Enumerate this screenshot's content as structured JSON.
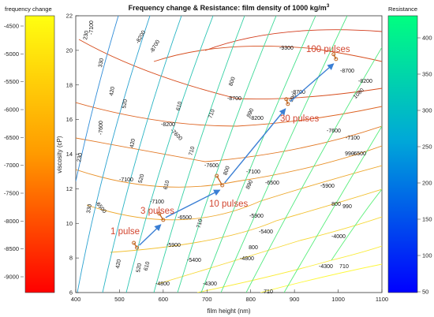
{
  "chart_data": [
    {
      "type": "contour",
      "title": "Frequency change & Resistance: film density of 1000 kg/m",
      "title_superscript": "3",
      "xlabel": "film height (nm)",
      "ylabel": "viscosity (cP)",
      "xlim": [
        400,
        1100
      ],
      "ylim": [
        6,
        22
      ],
      "x_ticks": [
        400,
        500,
        600,
        700,
        800,
        900,
        1000,
        1100
      ],
      "y_ticks": [
        6,
        8,
        10,
        12,
        14,
        16,
        18,
        20,
        22
      ],
      "frequency_contour_labels": [
        "-9300",
        "-8700",
        "-8700",
        "-8700",
        "-8200",
        "-8200",
        "-8200",
        "-7600",
        "-7600",
        "-7600",
        "-7600",
        "-7100",
        "-7100",
        "-7100",
        "-7100",
        "-6500",
        "-6500",
        "-6500",
        "-6500",
        "-5900",
        "-5900",
        "-5900",
        "-5400",
        "-5400",
        "-4800",
        "-4800",
        "-4300",
        "-4300",
        "-4000",
        "-7100",
        "-8200",
        "-8700"
      ],
      "resistance_contour_labels": [
        "230",
        "230",
        "330",
        "330",
        "420",
        "420",
        "420",
        "520",
        "520",
        "520",
        "610",
        "610",
        "610",
        "710",
        "710",
        "710",
        "710",
        "800",
        "800",
        "800",
        "890",
        "890",
        "990",
        "990",
        "1080",
        "990",
        "800",
        "710"
      ],
      "series": [
        {
          "name": "pulses",
          "points": [
            {
              "x": 540,
              "y": 8.6
            },
            {
              "x": 600,
              "y": 10.2
            },
            {
              "x": 735,
              "y": 12.2
            },
            {
              "x": 885,
              "y": 16.9
            },
            {
              "x": 995,
              "y": 19.5
            }
          ]
        }
      ],
      "annotations": [
        "1 pulse",
        "3 pulses",
        "10 pulses",
        "30 pulses",
        "100 pulses"
      ],
      "colorbars": [
        {
          "title": "frequency change",
          "ticks": [
            "-4500",
            "-5000",
            "-5500",
            "-6000",
            "-6500",
            "-7000",
            "-7500",
            "-8000",
            "-8500",
            "-9000"
          ],
          "colors": [
            "#ffff00",
            "#ff0000"
          ]
        },
        {
          "title": "Resistance",
          "ticks": [
            "400",
            "350",
            "300",
            "250",
            "200",
            "150",
            "100",
            "50"
          ],
          "colors": [
            "#00ff80",
            "#0000ff"
          ]
        }
      ],
      "grid": false,
      "colors": {
        "annotation": "#d2452f",
        "arrow": "#3b7fd4",
        "marker": "#c0651e"
      }
    }
  ]
}
